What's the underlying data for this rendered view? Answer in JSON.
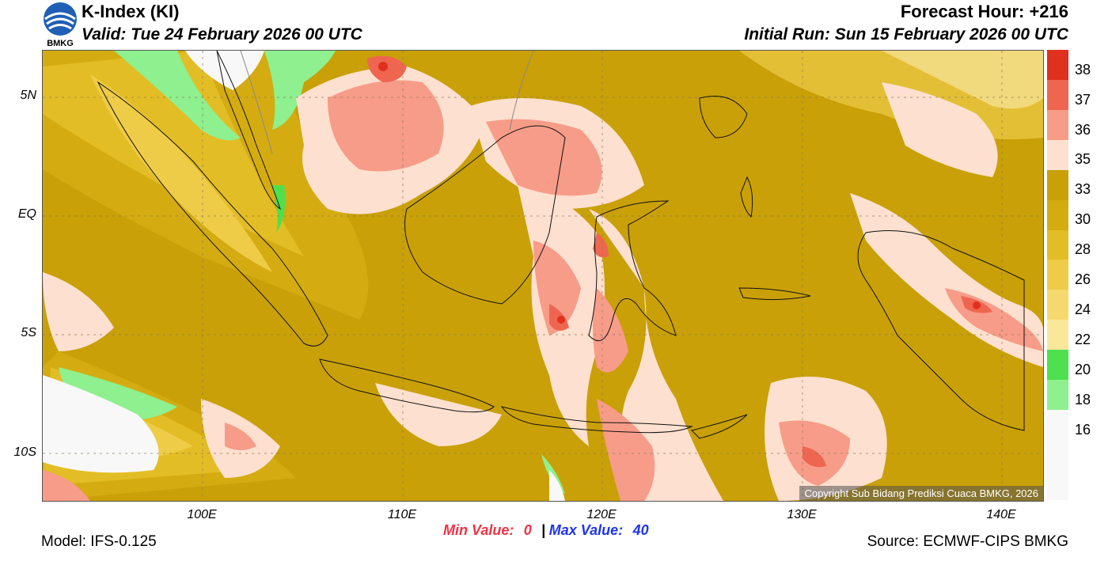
{
  "header": {
    "title": "K-Index (KI)",
    "valid": "Valid: Tue 24 February 2026 00 UTC",
    "forecast_hour": "Forecast Hour: +216",
    "initial_run": "Initial Run: Sun 15 February 2026 00 UTC",
    "logo_text": "BMKG"
  },
  "axes": {
    "lat_labels": [
      "5N",
      "EQ",
      "5S",
      "10S"
    ],
    "lon_labels": [
      "100E",
      "110E",
      "120E",
      "130E",
      "140E"
    ]
  },
  "legend": {
    "labels": [
      "38",
      "37",
      "36",
      "35",
      "33",
      "30",
      "28",
      "26",
      "24",
      "22",
      "20",
      "18",
      "16"
    ],
    "colors": [
      "#e0301e",
      "#ee6650",
      "#f79c88",
      "#fde0cf",
      "#c9a007",
      "#d4ac12",
      "#e3bd25",
      "#eecc48",
      "#f5d86e",
      "#fbe79a",
      "#4ee04e",
      "#8ef08e",
      "#f8f8f8"
    ]
  },
  "footer": {
    "model": "Model: IFS-0.125",
    "min_label": "Min Value:",
    "min_value": "0",
    "separator": "|",
    "max_label": "Max Value:",
    "max_value": "40",
    "source": "Source: ECMWF-CIPS BMKG"
  },
  "copyright": "Copyright Sub Bidang Prediksi Cuaca BMKG, 2026"
}
